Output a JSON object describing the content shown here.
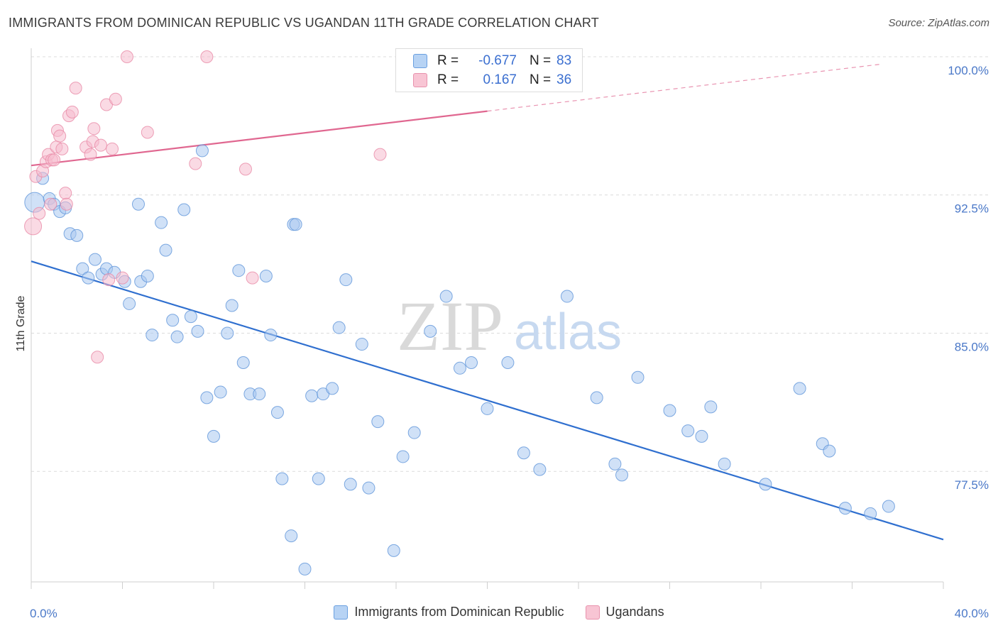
{
  "title": "IMMIGRANTS FROM DOMINICAN REPUBLIC VS UGANDAN 11TH GRADE CORRELATION CHART",
  "source": "Source: ZipAtlas.com",
  "watermark": {
    "zip": "ZIP",
    "atlas": "atlas"
  },
  "legend": {
    "series1": {
      "r_label": "R =",
      "r_value": "-0.677",
      "n_label": "N =",
      "n_value": "83"
    },
    "series2": {
      "r_label": "R =",
      "r_value": "0.167",
      "n_label": "N =",
      "n_value": "36"
    }
  },
  "chart_data": {
    "type": "scatter",
    "ylabel": "11th Grade",
    "xlim": [
      0,
      40
    ],
    "ylim": [
      71.5,
      100
    ],
    "x_tick_labels": [
      {
        "value": 0,
        "label": "0.0%"
      },
      {
        "value": 40,
        "label": "40.0%"
      }
    ],
    "y_ticks": [
      {
        "value": 77.5,
        "label": "77.5%"
      },
      {
        "value": 85.0,
        "label": "85.0%"
      },
      {
        "value": 92.5,
        "label": "92.5%"
      },
      {
        "value": 100.0,
        "label": "100.0%"
      }
    ],
    "grid": "horizontal-dashed",
    "legend_position": "bottom",
    "colors": {
      "blue_fill": "#a9c9f0",
      "blue_stroke": "#5f95d9",
      "blue_line": "#2f6fcf",
      "pink_fill": "#f6bccd",
      "pink_stroke": "#e88aa6",
      "pink_line": "#e06790"
    },
    "series": [
      {
        "name": "Immigrants from Dominican Republic",
        "color": "blue",
        "trend": {
          "x1": 0,
          "y1": 88.9,
          "x2": 40,
          "y2": 73.8,
          "dashed_from": null
        },
        "points": [
          [
            0.15,
            92.1
          ],
          [
            0.5,
            93.4
          ],
          [
            0.8,
            92.3
          ],
          [
            1.0,
            92.0
          ],
          [
            1.25,
            91.6
          ],
          [
            1.5,
            91.8
          ],
          [
            1.7,
            90.4
          ],
          [
            2.0,
            90.3
          ],
          [
            2.25,
            88.5
          ],
          [
            2.5,
            88.0
          ],
          [
            2.8,
            89.0
          ],
          [
            3.1,
            88.2
          ],
          [
            3.3,
            88.5
          ],
          [
            3.65,
            88.3
          ],
          [
            4.1,
            87.8
          ],
          [
            4.3,
            86.6
          ],
          [
            4.7,
            92.0
          ],
          [
            4.8,
            87.8
          ],
          [
            5.1,
            88.1
          ],
          [
            5.3,
            84.9
          ],
          [
            5.7,
            91.0
          ],
          [
            5.9,
            89.5
          ],
          [
            6.2,
            85.7
          ],
          [
            6.4,
            84.8
          ],
          [
            6.7,
            91.7
          ],
          [
            7.0,
            85.9
          ],
          [
            7.3,
            85.1
          ],
          [
            7.5,
            94.9
          ],
          [
            7.7,
            81.5
          ],
          [
            8.0,
            79.4
          ],
          [
            8.3,
            81.8
          ],
          [
            8.6,
            85.0
          ],
          [
            8.8,
            86.5
          ],
          [
            9.1,
            88.4
          ],
          [
            9.3,
            83.4
          ],
          [
            9.6,
            81.7
          ],
          [
            10.0,
            81.7
          ],
          [
            10.3,
            88.1
          ],
          [
            10.5,
            84.9
          ],
          [
            10.8,
            80.7
          ],
          [
            11.0,
            77.1
          ],
          [
            11.4,
            74.0
          ],
          [
            11.5,
            90.9
          ],
          [
            11.6,
            90.9
          ],
          [
            12.0,
            72.2
          ],
          [
            12.3,
            81.6
          ],
          [
            12.6,
            77.1
          ],
          [
            12.8,
            81.7
          ],
          [
            13.2,
            82.0
          ],
          [
            13.5,
            85.3
          ],
          [
            13.8,
            87.9
          ],
          [
            14.0,
            76.8
          ],
          [
            14.5,
            84.4
          ],
          [
            14.8,
            76.6
          ],
          [
            15.2,
            80.2
          ],
          [
            15.9,
            73.2
          ],
          [
            16.3,
            78.3
          ],
          [
            16.8,
            79.6
          ],
          [
            17.5,
            85.1
          ],
          [
            18.2,
            87.0
          ],
          [
            18.8,
            83.1
          ],
          [
            19.3,
            83.4
          ],
          [
            20.0,
            80.9
          ],
          [
            20.9,
            83.4
          ],
          [
            21.6,
            78.5
          ],
          [
            22.3,
            77.6
          ],
          [
            23.5,
            87.0
          ],
          [
            24.8,
            81.5
          ],
          [
            25.6,
            77.9
          ],
          [
            25.9,
            77.3
          ],
          [
            26.6,
            82.6
          ],
          [
            28.0,
            80.8
          ],
          [
            28.8,
            79.7
          ],
          [
            29.4,
            79.4
          ],
          [
            29.8,
            81.0
          ],
          [
            30.4,
            77.9
          ],
          [
            32.2,
            76.8
          ],
          [
            33.7,
            82.0
          ],
          [
            34.7,
            79.0
          ],
          [
            35.0,
            78.6
          ],
          [
            35.7,
            75.5
          ],
          [
            36.8,
            75.2
          ],
          [
            37.6,
            75.6
          ]
        ]
      },
      {
        "name": "Ugandans",
        "color": "pink",
        "trend": {
          "x1": 0,
          "y1": 94.1,
          "x2": 40,
          "y2": 100.0,
          "dashed_from": 20.0
        },
        "points": [
          [
            0.08,
            90.8
          ],
          [
            0.2,
            93.5
          ],
          [
            0.35,
            91.5
          ],
          [
            0.5,
            93.8
          ],
          [
            0.65,
            94.3
          ],
          [
            0.75,
            94.7
          ],
          [
            0.85,
            92.0
          ],
          [
            0.9,
            94.4
          ],
          [
            1.0,
            94.4
          ],
          [
            1.1,
            95.1
          ],
          [
            1.15,
            96.0
          ],
          [
            1.25,
            95.7
          ],
          [
            1.35,
            95.0
          ],
          [
            1.5,
            92.6
          ],
          [
            1.55,
            92.0
          ],
          [
            1.65,
            96.8
          ],
          [
            1.8,
            97.0
          ],
          [
            1.95,
            98.3
          ],
          [
            2.4,
            95.1
          ],
          [
            2.6,
            94.7
          ],
          [
            2.7,
            95.4
          ],
          [
            2.75,
            96.1
          ],
          [
            2.9,
            83.7
          ],
          [
            3.05,
            95.2
          ],
          [
            3.3,
            97.4
          ],
          [
            3.4,
            87.9
          ],
          [
            3.55,
            95.0
          ],
          [
            3.7,
            97.7
          ],
          [
            4.0,
            88.0
          ],
          [
            4.2,
            100.0
          ],
          [
            5.1,
            95.9
          ],
          [
            7.2,
            94.2
          ],
          [
            7.7,
            100.0
          ],
          [
            9.4,
            93.9
          ],
          [
            9.7,
            88.0
          ],
          [
            15.3,
            94.7
          ]
        ]
      }
    ]
  },
  "legend_bottom": [
    {
      "label": "Immigrants from Dominican Republic",
      "color": "blue"
    },
    {
      "label": "Ugandans",
      "color": "pink"
    }
  ]
}
